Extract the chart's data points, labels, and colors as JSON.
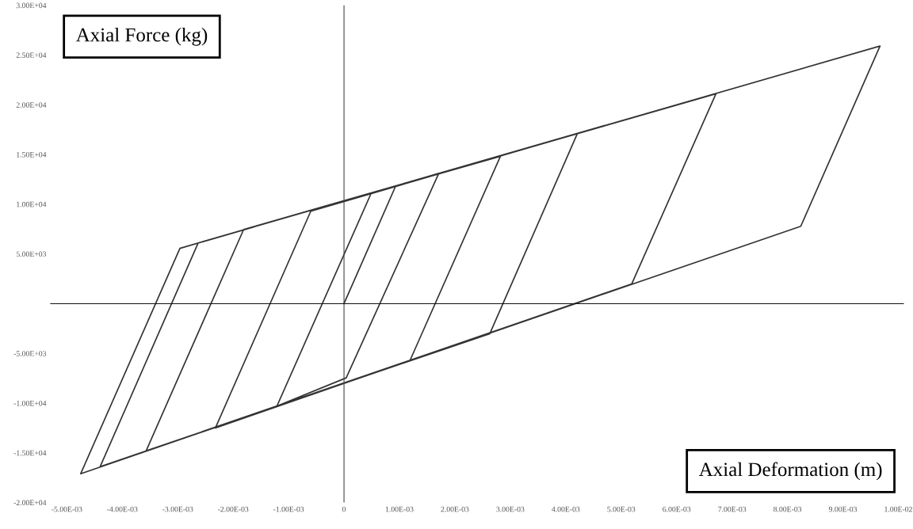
{
  "chart_data": {
    "type": "line",
    "xlabel": "Axial Deformation (m)",
    "ylabel": "Axial Force (kg)",
    "series": [
      {
        "color": "#333333",
        "x": [
          0,
          0.00093,
          0.00171,
          4e-05,
          -0.00121,
          0.00049,
          0.00282,
          0.00119,
          -0.00232,
          -0.0006,
          0.00421,
          0.00263,
          -0.00357,
          -0.00181,
          0.00671,
          0.00519,
          -0.0044,
          -0.00263,
          0.00967,
          0.00824,
          -0.00475,
          -0.00296,
          -0.00163
        ],
        "values": [
          0,
          11800,
          13100,
          -7460,
          -10300,
          11100,
          14800,
          -5720,
          -12500,
          9290,
          17100,
          -3020,
          -14800,
          7460,
          21100,
          1980,
          -16400,
          6110,
          25900,
          7780,
          -17100,
          5560,
          7700
        ]
      }
    ],
    "xlim": [
      -0.0053,
      0.0101
    ],
    "ylim": [
      -20000,
      30000
    ],
    "xticks": [
      {
        "value": -0.005,
        "label": "-5.00E-03"
      },
      {
        "value": -0.004,
        "label": "-4.00E-03"
      },
      {
        "value": -0.003,
        "label": "-3.00E-03"
      },
      {
        "value": -0.002,
        "label": "-2.00E-03"
      },
      {
        "value": -0.001,
        "label": "-1.00E-03"
      },
      {
        "value": 0,
        "label": "0"
      },
      {
        "value": 0.001,
        "label": "1.00E-03"
      },
      {
        "value": 0.002,
        "label": "2.00E-03"
      },
      {
        "value": 0.003,
        "label": "3.00E-03"
      },
      {
        "value": 0.004,
        "label": "4.00E-03"
      },
      {
        "value": 0.005,
        "label": "5.00E-03"
      },
      {
        "value": 0.006,
        "label": "6.00E-03"
      },
      {
        "value": 0.007,
        "label": "7.00E-03"
      },
      {
        "value": 0.008,
        "label": "8.00E-03"
      },
      {
        "value": 0.009,
        "label": "9.00E-03"
      },
      {
        "value": 0.01,
        "label": "1.00E-02"
      }
    ],
    "yticks": [
      {
        "value": -20000,
        "label": "-2.00E+04"
      },
      {
        "value": -15000,
        "label": "-1.50E+04"
      },
      {
        "value": -10000,
        "label": "-1.00E+04"
      },
      {
        "value": -5000,
        "label": "-5.00E+03"
      },
      {
        "value": 0,
        "label": null
      },
      {
        "value": 5000,
        "label": "5.00E+03"
      },
      {
        "value": 10000,
        "label": "1.00E+04"
      },
      {
        "value": 15000,
        "label": "1.50E+04"
      },
      {
        "value": 20000,
        "label": "2.00E+04"
      },
      {
        "value": 25000,
        "label": "2.50E+04"
      },
      {
        "value": 30000,
        "label": "3.00E+04"
      }
    ],
    "ref_lines": [
      {
        "axis": "x",
        "value": 0,
        "color": "#444444"
      },
      {
        "axis": "y",
        "value": 0,
        "color": "#111111"
      }
    ],
    "grid": false,
    "legend": false,
    "marker": "none",
    "line_style": "solid"
  }
}
